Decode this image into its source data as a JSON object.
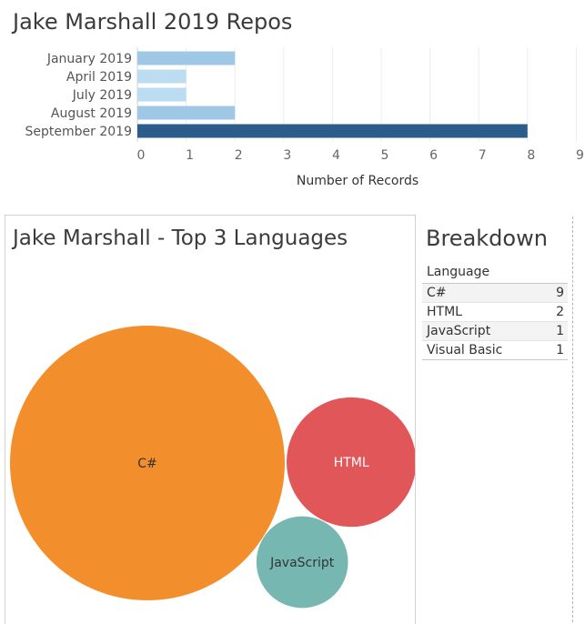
{
  "bar_panel": {
    "title": "Jake Marshall 2019 Repos"
  },
  "bubble_panel": {
    "title": "Jake Marshall - Top 3 Languages"
  },
  "breakdown": {
    "title": "Breakdown",
    "header": "Language",
    "rows": [
      {
        "language": "C#",
        "count": "9"
      },
      {
        "language": "HTML",
        "count": "2"
      },
      {
        "language": "JavaScript",
        "count": "1"
      },
      {
        "language": "Visual Basic",
        "count": "1"
      }
    ]
  },
  "chart_data": [
    {
      "type": "bar",
      "orientation": "horizontal",
      "title": "Jake Marshall 2019 Repos",
      "categories": [
        "January 2019",
        "April 2019",
        "July 2019",
        "August 2019",
        "September 2019"
      ],
      "values": [
        2,
        1,
        1,
        2,
        8
      ],
      "colors": [
        "#9ec8e6",
        "#bcdcf2",
        "#bcdcf2",
        "#9ec8e6",
        "#2b5c8a"
      ],
      "xlabel": "Number of Records",
      "ylabel": "",
      "xlim": [
        0,
        9
      ],
      "xticks": [
        "0",
        "1",
        "2",
        "3",
        "4",
        "5",
        "6",
        "7",
        "8",
        "9"
      ],
      "grid": true
    },
    {
      "type": "bubble",
      "title": "Jake Marshall - Top 3 Languages",
      "labels": [
        "C#",
        "HTML",
        "JavaScript"
      ],
      "values": [
        9,
        2,
        1
      ],
      "colors": [
        "#f28e2b",
        "#e15759",
        "#76b7b2"
      ],
      "label_colors": [
        "#333333",
        "#ffffff",
        "#333333"
      ]
    }
  ]
}
